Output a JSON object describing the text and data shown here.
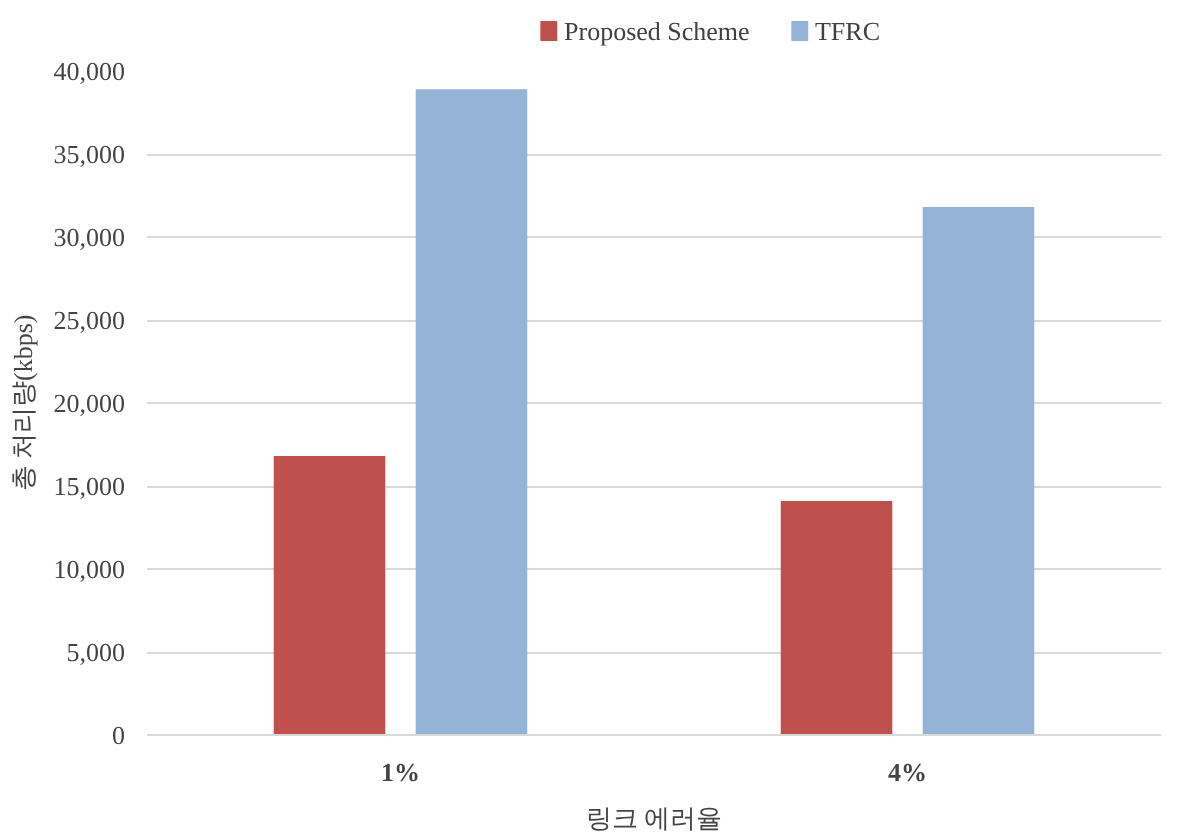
{
  "chart_data": {
    "type": "bar",
    "xlabel": "링크 에러율",
    "ylabel": "총 처리량(kbps)",
    "categories": [
      "1%",
      "4%"
    ],
    "series": [
      {
        "name": "Proposed Scheme",
        "color": "#c0504d",
        "values": [
          16800,
          14100
        ]
      },
      {
        "name": "TFRC",
        "color": "#95b3d7",
        "values": [
          38900,
          31800
        ]
      }
    ],
    "ylim": [
      0,
      40000
    ],
    "yticks": [
      {
        "value": 0,
        "label": "0"
      },
      {
        "value": 5000,
        "label": "5,000"
      },
      {
        "value": 10000,
        "label": "10,000"
      },
      {
        "value": 15000,
        "label": "15,000"
      },
      {
        "value": 20000,
        "label": "20,000"
      },
      {
        "value": 25000,
        "label": "25,000"
      },
      {
        "value": 30000,
        "label": "30,000"
      },
      {
        "value": 35000,
        "label": "35,000"
      },
      {
        "value": 40000,
        "label": "40,000"
      }
    ],
    "grid": "y",
    "legend": "top"
  }
}
